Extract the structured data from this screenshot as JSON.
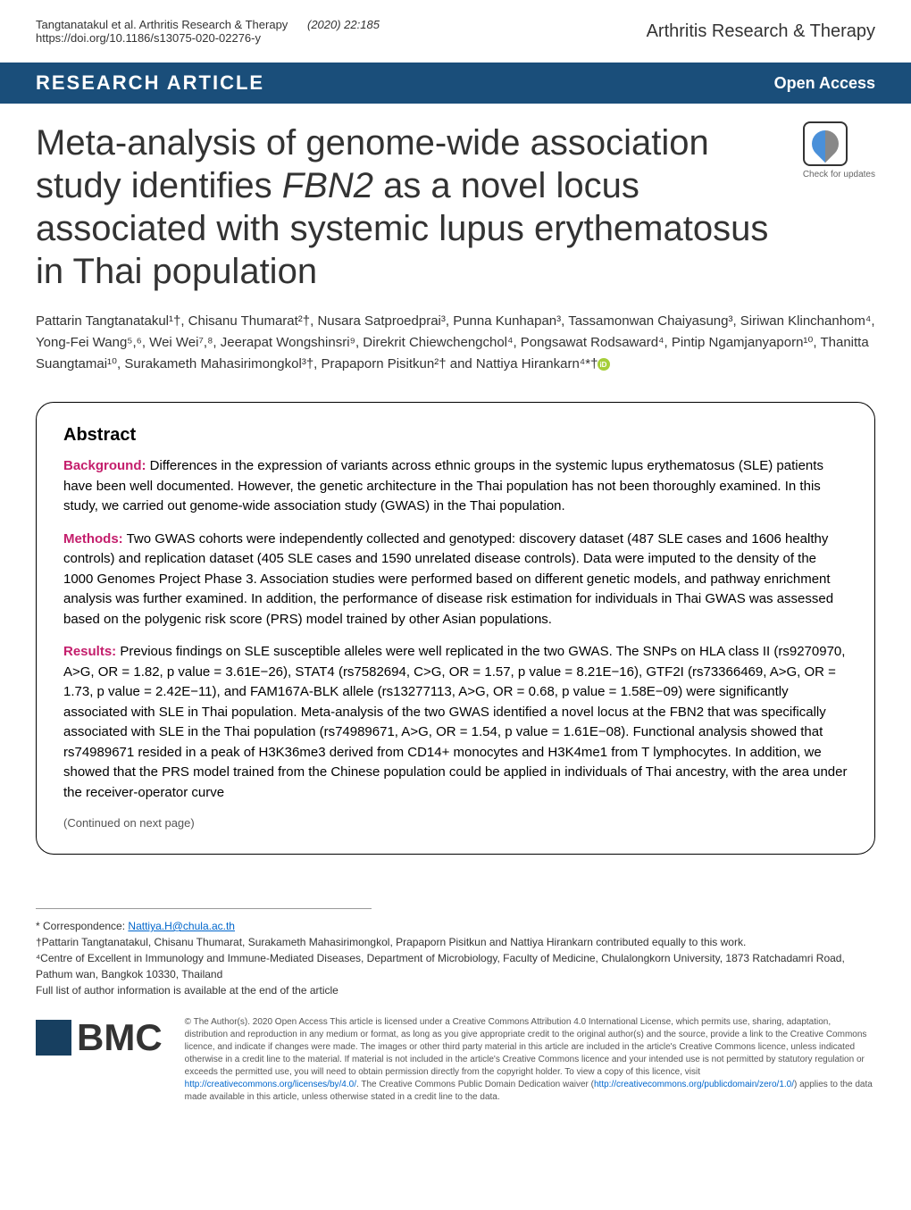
{
  "header": {
    "citation_authors": "Tangtanatakul et al. Arthritis Research & Therapy",
    "citation_issue": "(2020) 22:185",
    "doi": "https://doi.org/10.1186/s13075-020-02276-y",
    "journal": "Arthritis Research & Therapy"
  },
  "type_bar": {
    "article_type": "RESEARCH ARTICLE",
    "open_access": "Open Access"
  },
  "title": {
    "part1": "Meta-analysis of genome-wide association study identifies ",
    "italic": "FBN2",
    "part2": " as a novel locus associated with systemic lupus erythematosus in Thai population"
  },
  "check_updates": "Check for updates",
  "authors": "Pattarin Tangtanatakul¹†, Chisanu Thumarat²†, Nusara Satproedprai³, Punna Kunhapan³, Tassamonwan Chaiyasung³, Siriwan Klinchanhom⁴, Yong-Fei Wang⁵,⁶, Wei Wei⁷,⁸, Jeerapat Wongshinsri⁹, Direkrit Chiewchengchol⁴, Pongsawat Rodsaward⁴, Pintip Ngamjanyaporn¹⁰, Thanitta Suangtamai¹⁰, Surakameth Mahasirimongkol³†, Prapaporn Pisitkun²† and Nattiya Hirankarn⁴*†",
  "abstract": {
    "heading": "Abstract",
    "background_label": "Background:",
    "background": " Differences in the expression of variants across ethnic groups in the systemic lupus erythematosus (SLE) patients have been well documented. However, the genetic architecture in the Thai population has not been thoroughly examined. In this study, we carried out genome-wide association study (GWAS) in the Thai population.",
    "methods_label": "Methods:",
    "methods": " Two GWAS cohorts were independently collected and genotyped: discovery dataset (487 SLE cases and 1606 healthy controls) and replication dataset (405 SLE cases and 1590 unrelated disease controls). Data were imputed to the density of the 1000 Genomes Project Phase 3. Association studies were performed based on different genetic models, and pathway enrichment analysis was further examined. In addition, the performance of disease risk estimation for individuals in Thai GWAS was assessed based on the polygenic risk score (PRS) model trained by other Asian populations.",
    "results_label": "Results:",
    "results": " Previous findings on SLE susceptible alleles were well replicated in the two GWAS. The SNPs on HLA class II (rs9270970, A>G, OR = 1.82, p value = 3.61E−26), STAT4 (rs7582694, C>G, OR = 1.57, p value = 8.21E−16), GTF2I (rs73366469, A>G, OR = 1.73, p value = 2.42E−11), and FAM167A-BLK allele (rs13277113, A>G, OR = 0.68, p value = 1.58E−09) were significantly associated with SLE in Thai population. Meta-analysis of the two GWAS identified a novel locus at the FBN2 that was specifically associated with SLE in the Thai population (rs74989671, A>G, OR = 1.54, p value = 1.61E−08). Functional analysis showed that rs74989671 resided in a peak of H3K36me3 derived from CD14+ monocytes and H3K4me1 from T lymphocytes. In addition, we showed that the PRS model trained from the Chinese population could be applied in individuals of Thai ancestry, with the area under the receiver-operator curve",
    "continued": "(Continued on next page)"
  },
  "footer": {
    "correspondence_label": "* Correspondence: ",
    "correspondence_email": "Nattiya.H@chula.ac.th",
    "equal_contrib": "†Pattarin Tangtanatakul, Chisanu Thumarat, Surakameth Mahasirimongkol, Prapaporn Pisitkun and Nattiya Hirankarn contributed equally to this work.",
    "affiliation4": "⁴Centre of Excellent in Immunology and Immune-Mediated Diseases, Department of Microbiology, Faculty of Medicine, Chulalongkorn University, 1873 Ratchadamri Road, Pathum wan, Bangkok 10330, Thailand",
    "full_list": "Full list of author information is available at the end of the article"
  },
  "bmc": {
    "logo_text": "BMC",
    "license": "© The Author(s). 2020 Open Access This article is licensed under a Creative Commons Attribution 4.0 International License, which permits use, sharing, adaptation, distribution and reproduction in any medium or format, as long as you give appropriate credit to the original author(s) and the source, provide a link to the Creative Commons licence, and indicate if changes were made. The images or other third party material in this article are included in the article's Creative Commons licence, unless indicated otherwise in a credit line to the material. If material is not included in the article's Creative Commons licence and your intended use is not permitted by statutory regulation or exceeds the permitted use, you will need to obtain permission directly from the copyright holder. To view a copy of this licence, visit ",
    "license_link1": "http://creativecommons.org/licenses/by/4.0/",
    "license2": ". The Creative Commons Public Domain Dedication waiver (",
    "license_link2": "http://creativecommons.org/publicdomain/zero/1.0/",
    "license3": ") applies to the data made available in this article, unless otherwise stated in a credit line to the data."
  }
}
